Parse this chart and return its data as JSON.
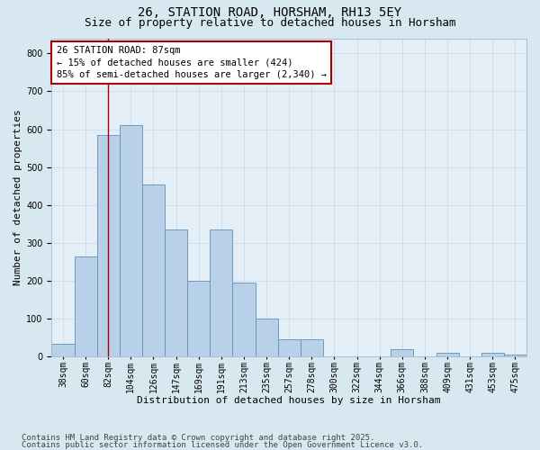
{
  "title1": "26, STATION ROAD, HORSHAM, RH13 5EY",
  "title2": "Size of property relative to detached houses in Horsham",
  "xlabel": "Distribution of detached houses by size in Horsham",
  "ylabel": "Number of detached properties",
  "categories": [
    "38sqm",
    "60sqm",
    "82sqm",
    "104sqm",
    "126sqm",
    "147sqm",
    "169sqm",
    "191sqm",
    "213sqm",
    "235sqm",
    "257sqm",
    "278sqm",
    "300sqm",
    "322sqm",
    "344sqm",
    "366sqm",
    "388sqm",
    "409sqm",
    "431sqm",
    "453sqm",
    "475sqm"
  ],
  "values": [
    35,
    265,
    585,
    610,
    455,
    335,
    200,
    335,
    195,
    100,
    45,
    45,
    0,
    0,
    0,
    20,
    0,
    10,
    0,
    10,
    5
  ],
  "bar_color": "#b8d0e8",
  "bar_edge_color": "#6090b8",
  "annotation_text_line1": "26 STATION ROAD: 87sqm",
  "annotation_text_line2": "← 15% of detached houses are smaller (424)",
  "annotation_text_line3": "85% of semi-detached houses are larger (2,340) →",
  "annotation_box_color": "#ffffff",
  "annotation_border_color": "#aa0000",
  "vline_color": "#aa0000",
  "vline_x": 2.0,
  "ylim": [
    0,
    840
  ],
  "yticks": [
    0,
    100,
    200,
    300,
    400,
    500,
    600,
    700,
    800
  ],
  "grid_color": "#c5d8e8",
  "bg_color": "#d8e8f0",
  "plot_bg_color": "#e4eef6",
  "footer1": "Contains HM Land Registry data © Crown copyright and database right 2025.",
  "footer2": "Contains public sector information licensed under the Open Government Licence v3.0.",
  "title1_fontsize": 10,
  "title2_fontsize": 9,
  "axis_label_fontsize": 8,
  "tick_fontsize": 7,
  "annot_fontsize": 7.5,
  "footer_fontsize": 6.5
}
